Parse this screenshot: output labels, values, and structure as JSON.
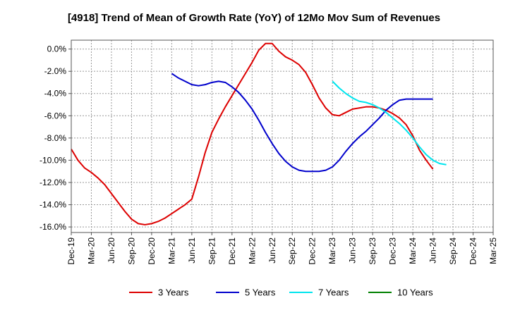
{
  "chart_data": {
    "type": "line",
    "title": "[4918]  Trend of Mean of Growth Rate (YoY) of 12Mo Mov Sum of Revenues",
    "xlabel": "",
    "ylabel": "",
    "x_tick_labels": [
      "Dec-19",
      "Mar-20",
      "Jun-20",
      "Sep-20",
      "Dec-20",
      "Mar-21",
      "Jun-21",
      "Sep-21",
      "Dec-21",
      "Mar-22",
      "Jun-22",
      "Sep-22",
      "Dec-22",
      "Mar-23",
      "Jun-23",
      "Sep-23",
      "Dec-23",
      "Mar-24",
      "Jun-24",
      "Sep-24",
      "Dec-24",
      "Mar-25"
    ],
    "y_tick_labels": [
      "0.0%",
      "-2.0%",
      "-4.0%",
      "-6.0%",
      "-8.0%",
      "-10.0%",
      "-12.0%",
      "-14.0%",
      "-16.0%"
    ],
    "y_ticks": [
      0,
      -2,
      -4,
      -6,
      -8,
      -10,
      -12,
      -14,
      -16
    ],
    "ylim": [
      -16.5,
      0.8
    ],
    "x_range_months": [
      0,
      63
    ],
    "grid": true,
    "legend_position": "bottom",
    "series": [
      {
        "name": "3 Years",
        "color": "#dd0000",
        "start_month": 0,
        "values": [
          -9.0,
          -10.0,
          -10.7,
          -11.1,
          -11.6,
          -12.2,
          -13.0,
          -13.8,
          -14.6,
          -15.3,
          -15.7,
          -15.8,
          -15.7,
          -15.5,
          -15.2,
          -14.8,
          -14.4,
          -14.0,
          -13.5,
          -11.5,
          -9.3,
          -7.5,
          -6.3,
          -5.2,
          -4.2,
          -3.2,
          -2.2,
          -1.2,
          -0.1,
          0.5,
          0.5,
          -0.2,
          -0.7,
          -1.0,
          -1.4,
          -2.1,
          -3.2,
          -4.4,
          -5.3,
          -5.9,
          -6.0,
          -5.7,
          -5.4,
          -5.3,
          -5.2,
          -5.2,
          -5.3,
          -5.5,
          -5.8,
          -6.2,
          -6.8,
          -7.8,
          -9.1,
          -10.0,
          -10.8
        ]
      },
      {
        "name": "5 Years",
        "color": "#0000cc",
        "start_month": 15,
        "values": [
          -2.2,
          -2.6,
          -2.9,
          -3.2,
          -3.3,
          -3.2,
          -3.0,
          -2.9,
          -3.0,
          -3.4,
          -3.9,
          -4.6,
          -5.4,
          -6.4,
          -7.5,
          -8.5,
          -9.4,
          -10.1,
          -10.6,
          -10.9,
          -11.0,
          -11.0,
          -11.0,
          -10.9,
          -10.6,
          -10.0,
          -9.2,
          -8.5,
          -7.9,
          -7.4,
          -6.8,
          -6.2,
          -5.5,
          -5.0,
          -4.6,
          -4.5,
          -4.5,
          -4.5,
          -4.5,
          -4.5
        ]
      },
      {
        "name": "7 Years",
        "color": "#00e5ee",
        "start_month": 39,
        "values": [
          -2.9,
          -3.5,
          -4.0,
          -4.4,
          -4.7,
          -4.8,
          -5.0,
          -5.3,
          -5.7,
          -6.2,
          -6.7,
          -7.3,
          -8.0,
          -8.8,
          -9.5,
          -10.0,
          -10.3,
          -10.4
        ]
      },
      {
        "name": "10 Years",
        "color": "#008000",
        "start_month": 0,
        "values": []
      }
    ]
  }
}
